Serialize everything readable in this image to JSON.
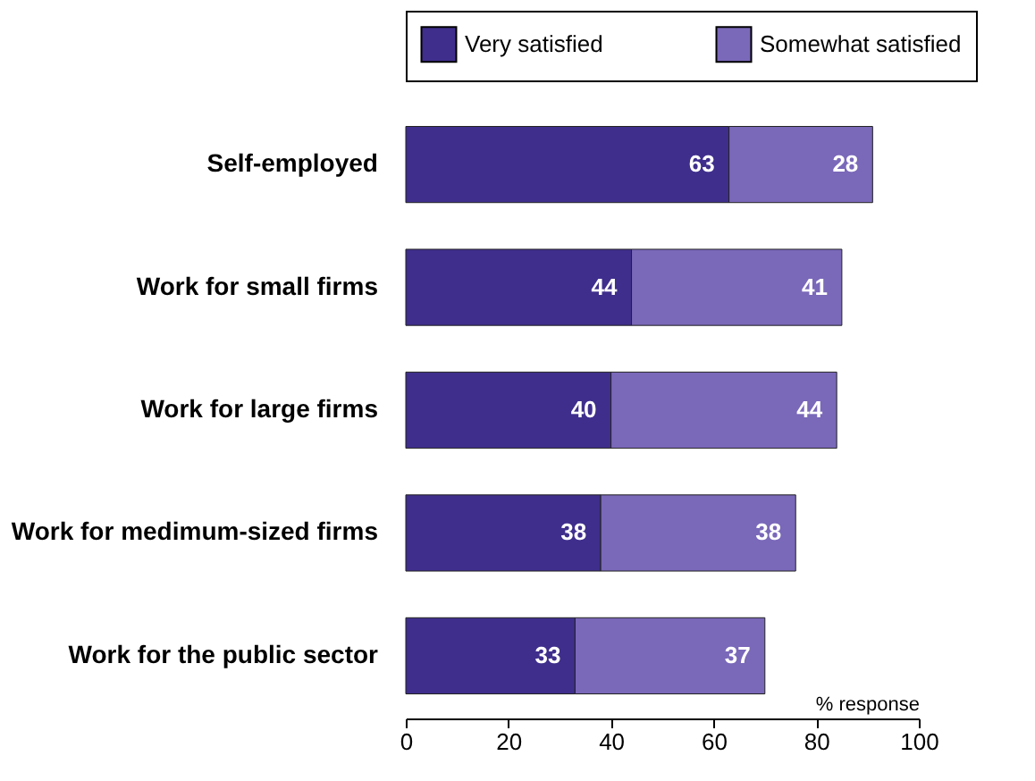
{
  "chart_data": {
    "type": "bar",
    "orientation": "horizontal",
    "stacked": true,
    "categories": [
      "Self-employed",
      "Work for small firms",
      "Work for large firms",
      "Work for medimum-sized firms",
      "Work for the public sector"
    ],
    "series": [
      {
        "name": "Very satisfied",
        "color": "#3f2e8c",
        "values": [
          63,
          44,
          40,
          38,
          33
        ]
      },
      {
        "name": "Somewhat satisfied",
        "color": "#7a68b9",
        "values": [
          28,
          41,
          44,
          38,
          37
        ]
      }
    ],
    "xlabel": "% response",
    "xlim": [
      0,
      100
    ],
    "xticks": [
      0,
      20,
      40,
      60,
      80,
      100
    ],
    "data_labels": true,
    "legend": "top",
    "grid": false
  }
}
